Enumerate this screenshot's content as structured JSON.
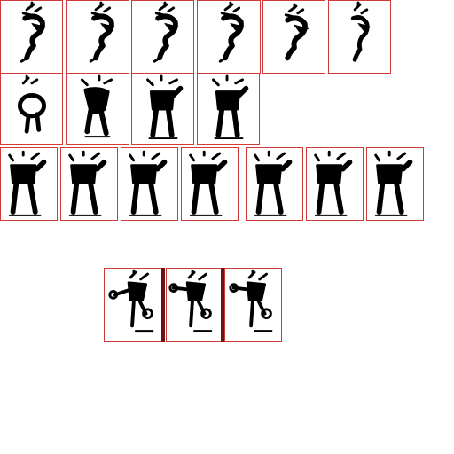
{
  "sheet": {
    "background": "#ffffff",
    "frame_border_color": "#d23a3a",
    "separator_color": "#6a1414",
    "sprite_color": "#000000"
  },
  "rows": [
    {
      "name": "leap",
      "frames": 6,
      "pose": "leap"
    },
    {
      "name": "land",
      "frames": 4,
      "pose": "land"
    },
    {
      "name": "idle",
      "frames": 7,
      "pose": "stand"
    },
    {
      "name": "attack",
      "frames": 3,
      "pose": "throw"
    }
  ]
}
